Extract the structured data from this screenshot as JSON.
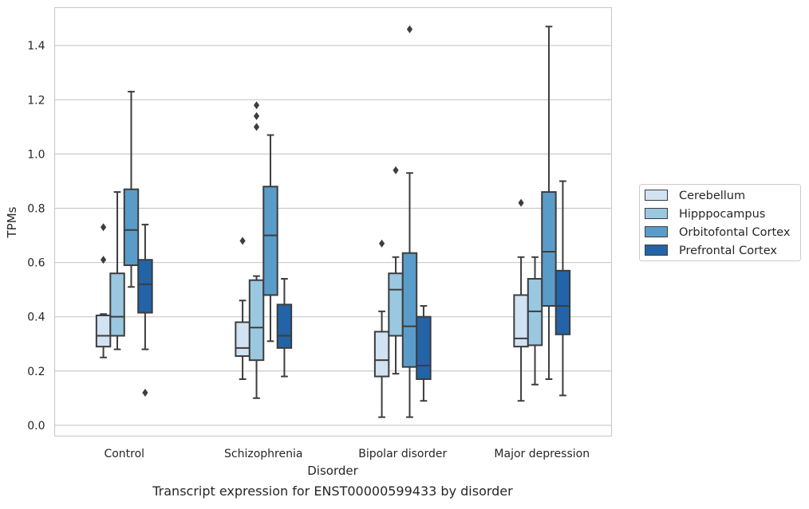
{
  "chart_data": {
    "type": "boxplot",
    "caption": "Transcript expression for ENST00000599433 by disorder",
    "xlabel": "Disorder",
    "ylabel": "TPMs",
    "ylim": [
      -0.04,
      1.54
    ],
    "yticks": [
      0.0,
      0.2,
      0.4,
      0.6,
      0.8,
      1.0,
      1.2,
      1.4
    ],
    "ytick_labels": [
      "0.0",
      "0.2",
      "0.4",
      "0.6",
      "0.8",
      "1.0",
      "1.2",
      "1.4"
    ],
    "grid": "horizontal",
    "legend_position": "right",
    "categories": [
      "Control",
      "Schizophrenia",
      "Bipolar disorder",
      "Major depression"
    ],
    "series": [
      {
        "name": "Cerebellum",
        "color": "#d1e2f2",
        "boxes": [
          {
            "whislo": 0.25,
            "q1": 0.29,
            "med": 0.33,
            "q3": 0.405,
            "whishi": 0.41,
            "fliers": [
              0.61,
              0.73
            ]
          },
          {
            "whislo": 0.17,
            "q1": 0.255,
            "med": 0.285,
            "q3": 0.38,
            "whishi": 0.46,
            "fliers": [
              0.68
            ]
          },
          {
            "whislo": 0.03,
            "q1": 0.18,
            "med": 0.24,
            "q3": 0.345,
            "whishi": 0.42,
            "fliers": [
              0.67
            ]
          },
          {
            "whislo": 0.09,
            "q1": 0.29,
            "med": 0.32,
            "q3": 0.48,
            "whishi": 0.62,
            "fliers": [
              0.82
            ]
          }
        ]
      },
      {
        "name": "Hipppocampus",
        "color": "#9ac8e0",
        "boxes": [
          {
            "whislo": 0.28,
            "q1": 0.33,
            "med": 0.4,
            "q3": 0.56,
            "whishi": 0.86,
            "fliers": []
          },
          {
            "whislo": 0.1,
            "q1": 0.24,
            "med": 0.36,
            "q3": 0.535,
            "whishi": 0.55,
            "fliers": [
              1.1,
              1.14,
              1.18
            ]
          },
          {
            "whislo": 0.19,
            "q1": 0.33,
            "med": 0.5,
            "q3": 0.56,
            "whishi": 0.62,
            "fliers": [
              0.94
            ]
          },
          {
            "whislo": 0.15,
            "q1": 0.295,
            "med": 0.42,
            "q3": 0.54,
            "whishi": 0.62,
            "fliers": []
          }
        ]
      },
      {
        "name": "Orbitofontal Cortex",
        "color": "#5a9cc9",
        "boxes": [
          {
            "whislo": 0.51,
            "q1": 0.59,
            "med": 0.72,
            "q3": 0.87,
            "whishi": 1.23,
            "fliers": []
          },
          {
            "whislo": 0.31,
            "q1": 0.48,
            "med": 0.7,
            "q3": 0.88,
            "whishi": 1.07,
            "fliers": []
          },
          {
            "whislo": 0.03,
            "q1": 0.215,
            "med": 0.365,
            "q3": 0.635,
            "whishi": 0.93,
            "fliers": [
              1.46
            ]
          },
          {
            "whislo": 0.17,
            "q1": 0.44,
            "med": 0.64,
            "q3": 0.86,
            "whishi": 1.47,
            "fliers": []
          }
        ]
      },
      {
        "name": "Prefrontal Cortex",
        "color": "#2264a7",
        "boxes": [
          {
            "whislo": 0.28,
            "q1": 0.415,
            "med": 0.52,
            "q3": 0.61,
            "whishi": 0.74,
            "fliers": [
              0.12
            ]
          },
          {
            "whislo": 0.18,
            "q1": 0.285,
            "med": 0.33,
            "q3": 0.445,
            "whishi": 0.54,
            "fliers": []
          },
          {
            "whislo": 0.09,
            "q1": 0.17,
            "med": 0.22,
            "q3": 0.4,
            "whishi": 0.44,
            "fliers": []
          },
          {
            "whislo": 0.11,
            "q1": 0.335,
            "med": 0.44,
            "q3": 0.57,
            "whishi": 0.9,
            "fliers": []
          }
        ]
      }
    ]
  }
}
